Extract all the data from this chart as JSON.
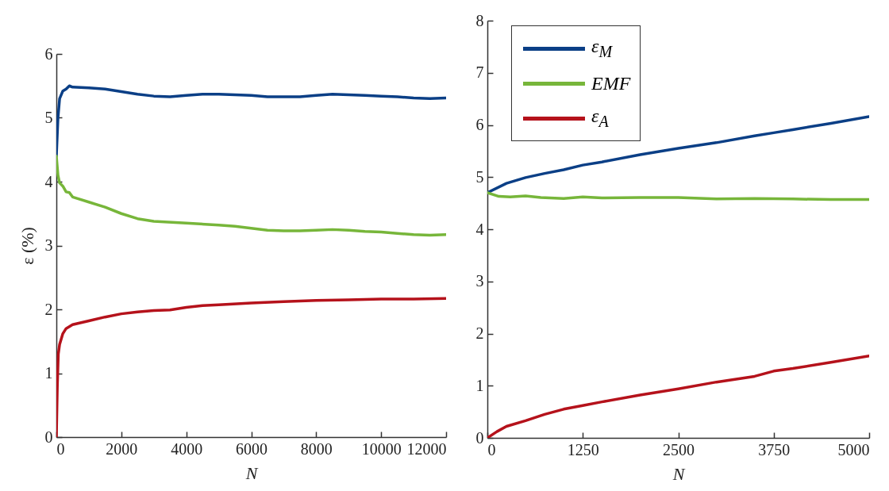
{
  "chart_data": [
    {
      "type": "line",
      "xlabel": "N",
      "ylabel": "ε (%)",
      "xlim": [
        0,
        12000
      ],
      "xticks": [
        0,
        2000,
        4000,
        6000,
        8000,
        10000,
        12000
      ],
      "ylim": [
        0,
        6
      ],
      "yticks": [
        0,
        1,
        2,
        3,
        4,
        5,
        6
      ],
      "series": [
        {
          "color": "#0b3f86",
          "x": [
            0,
            50,
            100,
            200,
            300,
            400,
            500,
            1000,
            1500,
            2000,
            2500,
            3000,
            3500,
            4000,
            4500,
            5000,
            5500,
            6000,
            6500,
            7000,
            7500,
            8000,
            8500,
            9000,
            9500,
            10000,
            10500,
            11000,
            11500,
            12000
          ],
          "values": [
            4.4,
            5.0,
            5.3,
            5.42,
            5.45,
            5.5,
            5.48,
            5.47,
            5.45,
            5.41,
            5.37,
            5.34,
            5.33,
            5.35,
            5.37,
            5.37,
            5.36,
            5.35,
            5.33,
            5.33,
            5.33,
            5.35,
            5.37,
            5.36,
            5.35,
            5.34,
            5.33,
            5.31,
            5.3,
            5.31
          ]
        },
        {
          "color": "#77b63a",
          "x": [
            0,
            50,
            100,
            200,
            300,
            400,
            500,
            1000,
            1500,
            2000,
            2500,
            3000,
            4000,
            5000,
            5500,
            6000,
            6500,
            7000,
            7500,
            8000,
            8500,
            9000,
            9500,
            10000,
            10500,
            11000,
            11500,
            12000
          ],
          "values": [
            4.4,
            4.1,
            3.98,
            3.93,
            3.84,
            3.83,
            3.76,
            3.68,
            3.6,
            3.5,
            3.42,
            3.38,
            3.35,
            3.32,
            3.3,
            3.27,
            3.24,
            3.23,
            3.23,
            3.24,
            3.25,
            3.24,
            3.22,
            3.21,
            3.19,
            3.17,
            3.16,
            3.17
          ]
        },
        {
          "color": "#b5121b",
          "x": [
            0,
            30,
            60,
            100,
            200,
            300,
            500,
            1000,
            1500,
            2000,
            2500,
            3000,
            3500,
            4000,
            4500,
            5000,
            6000,
            7000,
            8000,
            9000,
            10000,
            11000,
            12000
          ],
          "values": [
            0,
            0.8,
            1.3,
            1.45,
            1.62,
            1.7,
            1.76,
            1.82,
            1.88,
            1.93,
            1.96,
            1.98,
            1.99,
            2.03,
            2.06,
            2.07,
            2.1,
            2.12,
            2.14,
            2.15,
            2.16,
            2.16,
            2.17
          ]
        }
      ]
    },
    {
      "type": "line",
      "xlabel": "N",
      "xlim": [
        0,
        5000
      ],
      "xticks": [
        0,
        1250,
        2500,
        3750,
        5000
      ],
      "ylim": [
        0,
        8
      ],
      "yticks": [
        0,
        1,
        2,
        3,
        4,
        5,
        6,
        7,
        8
      ],
      "legend": "top left",
      "series": [
        {
          "name": "ε$_{M}$",
          "color": "#0b3f86",
          "x": [
            0,
            250,
            500,
            750,
            1000,
            1250,
            1500,
            2000,
            2500,
            3000,
            3500,
            3750,
            4000,
            4500,
            5000
          ],
          "values": [
            4.7,
            4.88,
            4.99,
            5.07,
            5.14,
            5.23,
            5.29,
            5.43,
            5.55,
            5.66,
            5.79,
            5.85,
            5.91,
            6.03,
            6.16
          ]
        },
        {
          "name": "EMF",
          "color": "#77b63a",
          "x": [
            0,
            150,
            300,
            500,
            700,
            1000,
            1250,
            1500,
            2000,
            2500,
            3000,
            3500,
            4000,
            4500,
            5000
          ],
          "values": [
            4.7,
            4.63,
            4.62,
            4.64,
            4.61,
            4.59,
            4.62,
            4.6,
            4.61,
            4.61,
            4.58,
            4.59,
            4.58,
            4.57,
            4.57
          ]
        },
        {
          "name": "ε$_{A}$",
          "color": "#b5121b",
          "x": [
            0,
            125,
            250,
            500,
            750,
            1000,
            1250,
            1500,
            2000,
            2500,
            3000,
            3500,
            3750,
            4000,
            4500,
            5000
          ],
          "values": [
            0,
            0.12,
            0.22,
            0.33,
            0.45,
            0.55,
            0.62,
            0.69,
            0.82,
            0.94,
            1.07,
            1.18,
            1.28,
            1.33,
            1.45,
            1.57
          ]
        }
      ]
    }
  ]
}
